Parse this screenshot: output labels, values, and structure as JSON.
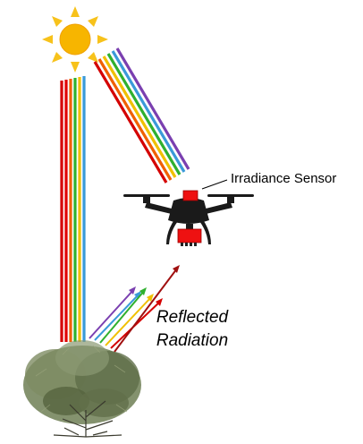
{
  "labels": {
    "irradiance_sensor": "Irradiance Sensor",
    "reflected_line1": "Reflected",
    "reflected_line2": "Radiation"
  },
  "colors": {
    "spectrum": [
      "#d40000",
      "#f06000",
      "#f0c000",
      "#2fb02f",
      "#3a9ad9",
      "#7a3fb0"
    ],
    "sun_core": "#f7b500",
    "sun_ray": "#f7c21b",
    "drone_body": "#1a1a1a",
    "sensor": "#ee1111",
    "foliage": "#6f7f55"
  },
  "icons": {
    "sun": "sun-icon",
    "drone": "drone-icon",
    "shrub": "shrub-icon"
  }
}
